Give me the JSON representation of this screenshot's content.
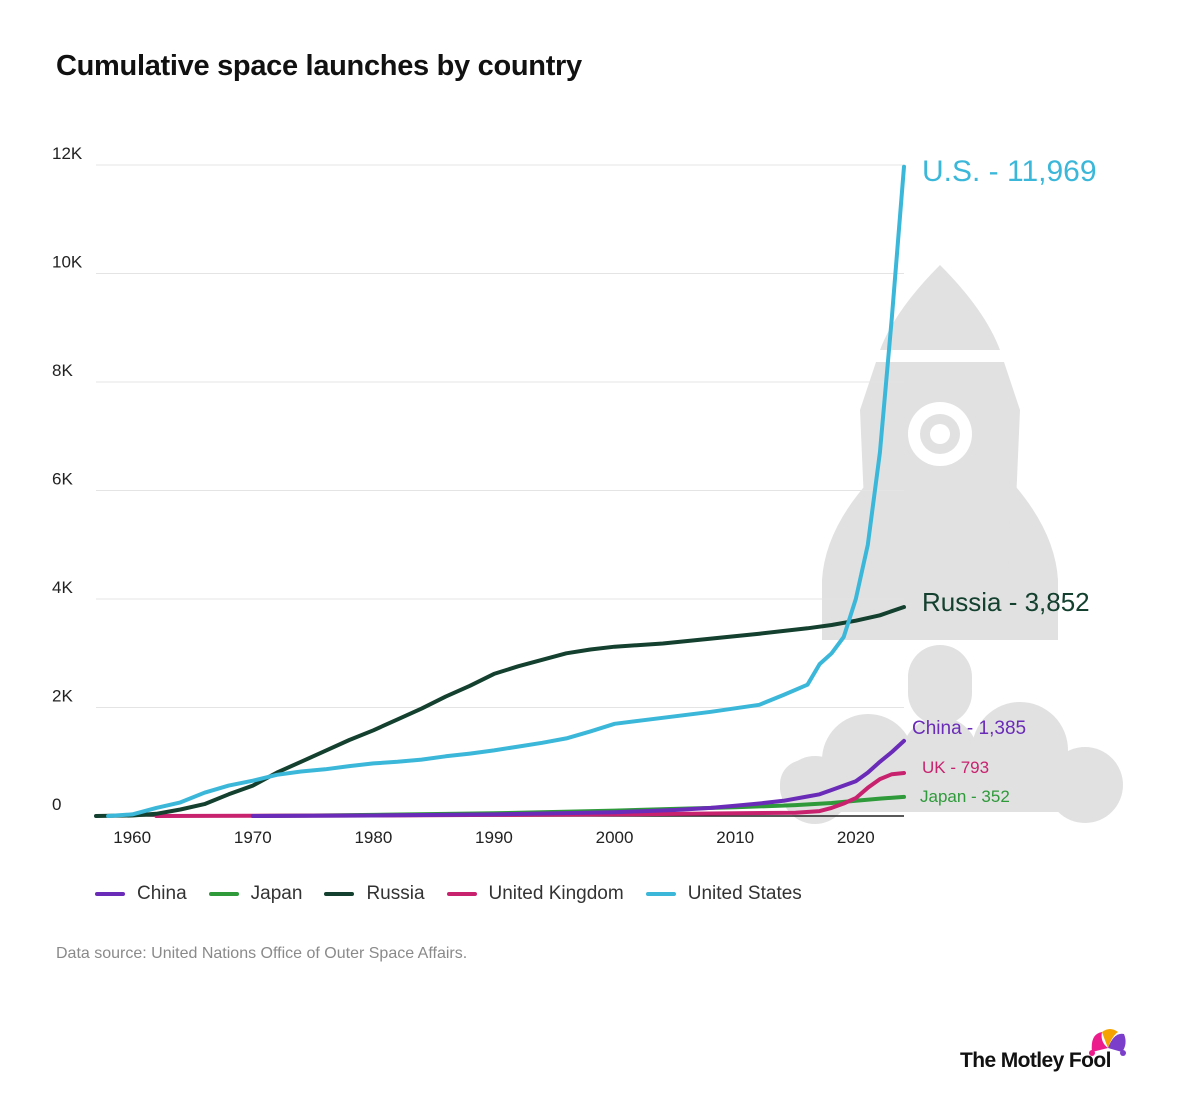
{
  "title": "Cumulative space launches by country",
  "source": "Data source: United Nations Office of Outer Space Affairs.",
  "brand": {
    "name": "The Motley Fool",
    "logo_icon": "jester-hat-icon"
  },
  "decoration": {
    "background_icon": "rocket-icon"
  },
  "chart_data": {
    "type": "line",
    "title": "Cumulative space launches by country",
    "xlabel": "",
    "ylabel": "",
    "xlim": [
      1957,
      2024
    ],
    "ylim": [
      0,
      12000
    ],
    "x_ticks": [
      1960,
      1970,
      1980,
      1990,
      2000,
      2010,
      2020
    ],
    "y_ticks": [
      0,
      2000,
      4000,
      6000,
      8000,
      10000,
      12000
    ],
    "y_tick_labels": [
      "0",
      "2K",
      "4K",
      "6K",
      "8K",
      "10K",
      "12K"
    ],
    "grid": "horizontal",
    "legend_position": "bottom",
    "series": [
      {
        "name": "China",
        "label": "China - 1,385",
        "color": "#6a2bb8",
        "points": [
          [
            1970,
            0
          ],
          [
            1980,
            10
          ],
          [
            1990,
            30
          ],
          [
            2000,
            70
          ],
          [
            2005,
            110
          ],
          [
            2008,
            150
          ],
          [
            2010,
            190
          ],
          [
            2012,
            230
          ],
          [
            2014,
            280
          ],
          [
            2016,
            360
          ],
          [
            2017,
            400
          ],
          [
            2018,
            480
          ],
          [
            2019,
            560
          ],
          [
            2020,
            640
          ],
          [
            2021,
            800
          ],
          [
            2022,
            1000
          ],
          [
            2023,
            1180
          ],
          [
            2024,
            1385
          ]
        ]
      },
      {
        "name": "Japan",
        "label": "Japan - 352",
        "color": "#2e9a3a",
        "points": [
          [
            1970,
            0
          ],
          [
            1975,
            10
          ],
          [
            1980,
            20
          ],
          [
            1990,
            50
          ],
          [
            2000,
            100
          ],
          [
            2005,
            130
          ],
          [
            2010,
            160
          ],
          [
            2015,
            200
          ],
          [
            2018,
            240
          ],
          [
            2020,
            280
          ],
          [
            2022,
            320
          ],
          [
            2024,
            352
          ]
        ]
      },
      {
        "name": "Russia",
        "label": "Russia - 3,852",
        "color": "#13402f",
        "points": [
          [
            1957,
            0
          ],
          [
            1960,
            10
          ],
          [
            1962,
            40
          ],
          [
            1964,
            120
          ],
          [
            1966,
            220
          ],
          [
            1968,
            400
          ],
          [
            1970,
            560
          ],
          [
            1972,
            800
          ],
          [
            1974,
            1000
          ],
          [
            1976,
            1200
          ],
          [
            1978,
            1400
          ],
          [
            1980,
            1580
          ],
          [
            1982,
            1780
          ],
          [
            1984,
            1980
          ],
          [
            1986,
            2200
          ],
          [
            1988,
            2400
          ],
          [
            1990,
            2620
          ],
          [
            1992,
            2760
          ],
          [
            1994,
            2880
          ],
          [
            1996,
            3000
          ],
          [
            1998,
            3070
          ],
          [
            2000,
            3120
          ],
          [
            2004,
            3180
          ],
          [
            2008,
            3270
          ],
          [
            2012,
            3360
          ],
          [
            2016,
            3460
          ],
          [
            2018,
            3520
          ],
          [
            2020,
            3600
          ],
          [
            2022,
            3700
          ],
          [
            2024,
            3852
          ]
        ]
      },
      {
        "name": "United Kingdom",
        "label": "UK - 793",
        "color": "#c8226f",
        "points": [
          [
            1962,
            0
          ],
          [
            1970,
            5
          ],
          [
            1980,
            10
          ],
          [
            1990,
            20
          ],
          [
            2000,
            30
          ],
          [
            2010,
            50
          ],
          [
            2015,
            60
          ],
          [
            2017,
            90
          ],
          [
            2018,
            150
          ],
          [
            2019,
            230
          ],
          [
            2020,
            330
          ],
          [
            2021,
            520
          ],
          [
            2022,
            680
          ],
          [
            2023,
            770
          ],
          [
            2024,
            793
          ]
        ]
      },
      {
        "name": "United States",
        "label": "U.S. - 11,969",
        "color": "#3bb7d9",
        "points": [
          [
            1958,
            0
          ],
          [
            1960,
            30
          ],
          [
            1962,
            150
          ],
          [
            1964,
            250
          ],
          [
            1966,
            430
          ],
          [
            1968,
            560
          ],
          [
            1970,
            650
          ],
          [
            1972,
            760
          ],
          [
            1974,
            820
          ],
          [
            1976,
            860
          ],
          [
            1978,
            920
          ],
          [
            1980,
            970
          ],
          [
            1982,
            1000
          ],
          [
            1984,
            1040
          ],
          [
            1986,
            1100
          ],
          [
            1988,
            1150
          ],
          [
            1990,
            1210
          ],
          [
            1992,
            1280
          ],
          [
            1994,
            1350
          ],
          [
            1996,
            1430
          ],
          [
            1998,
            1560
          ],
          [
            2000,
            1700
          ],
          [
            2004,
            1810
          ],
          [
            2008,
            1920
          ],
          [
            2012,
            2050
          ],
          [
            2014,
            2230
          ],
          [
            2016,
            2420
          ],
          [
            2017,
            2800
          ],
          [
            2018,
            3000
          ],
          [
            2019,
            3300
          ],
          [
            2020,
            4000
          ],
          [
            2021,
            5000
          ],
          [
            2022,
            6700
          ],
          [
            2023,
            9200
          ],
          [
            2024,
            11969
          ]
        ]
      }
    ]
  }
}
